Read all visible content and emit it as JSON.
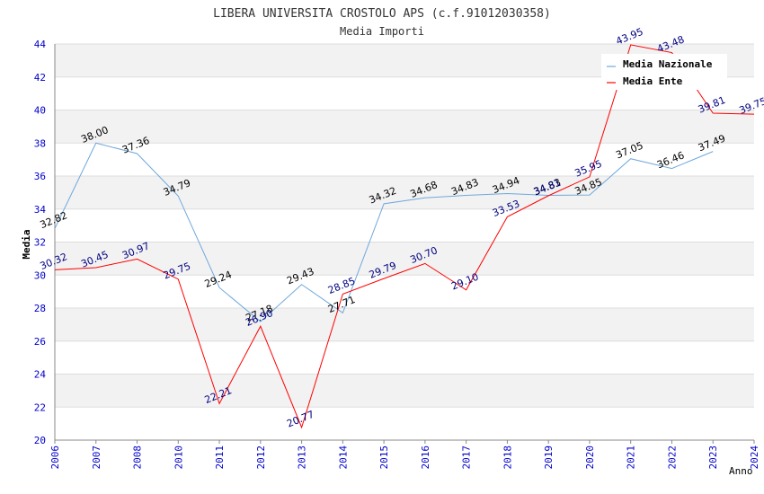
{
  "chart_data": {
    "type": "line",
    "title": "LIBERA UNIVERSITA CROSTOLO APS (c.f.91012030358)",
    "subtitle": "Media Importi",
    "xlabel": "Anno",
    "ylabel": "Media",
    "ylim": [
      20,
      44
    ],
    "yticks": [
      "20",
      "22",
      "24",
      "26",
      "28",
      "30",
      "32",
      "34",
      "36",
      "38",
      "40",
      "42",
      "44"
    ],
    "categories": [
      "2006",
      "2007",
      "2008",
      "2010",
      "2011",
      "2012",
      "2013",
      "2014",
      "2015",
      "2016",
      "2017",
      "2018",
      "2019",
      "2020",
      "2021",
      "2022",
      "2023",
      "2024"
    ],
    "legend_position": "top-right",
    "series": [
      {
        "name": "Media Nazionale",
        "color": "#6fa8dc",
        "values": [
          32.82,
          38.0,
          37.36,
          34.79,
          29.24,
          27.18,
          29.43,
          27.71,
          34.32,
          34.68,
          34.83,
          34.94,
          34.83,
          34.85,
          37.05,
          36.46,
          37.49,
          null
        ],
        "labels": [
          "32.82",
          "38.00",
          "37.36",
          "34.79",
          "29.24",
          "27.18",
          "29.43",
          "27.71",
          "34.32",
          "34.68",
          "34.83",
          "34.94",
          "34.83",
          "34.85",
          "37.05",
          "36.46",
          "37.49",
          ""
        ]
      },
      {
        "name": "Media Ente",
        "color": "#ff0000",
        "values": [
          30.32,
          30.45,
          30.97,
          29.75,
          22.21,
          26.9,
          20.77,
          28.85,
          29.79,
          30.7,
          29.1,
          33.53,
          34.81,
          35.95,
          43.95,
          43.48,
          39.81,
          39.75
        ],
        "labels": [
          "30.32",
          "30.45",
          "30.97",
          "29.75",
          "22.21",
          "26.90",
          "20.77",
          "28.85",
          "29.79",
          "30.70",
          "29.10",
          "33.53",
          "34.81",
          "35.95",
          "43.95",
          "43.48",
          "39.81",
          "39.75"
        ]
      }
    ]
  }
}
